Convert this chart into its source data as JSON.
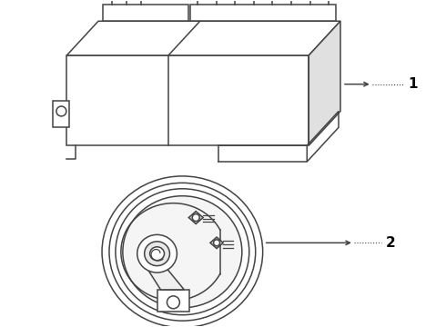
{
  "bg_color": "#ffffff",
  "line_color": "#444444",
  "label_color": "#000000",
  "label1": "1",
  "label2": "2"
}
